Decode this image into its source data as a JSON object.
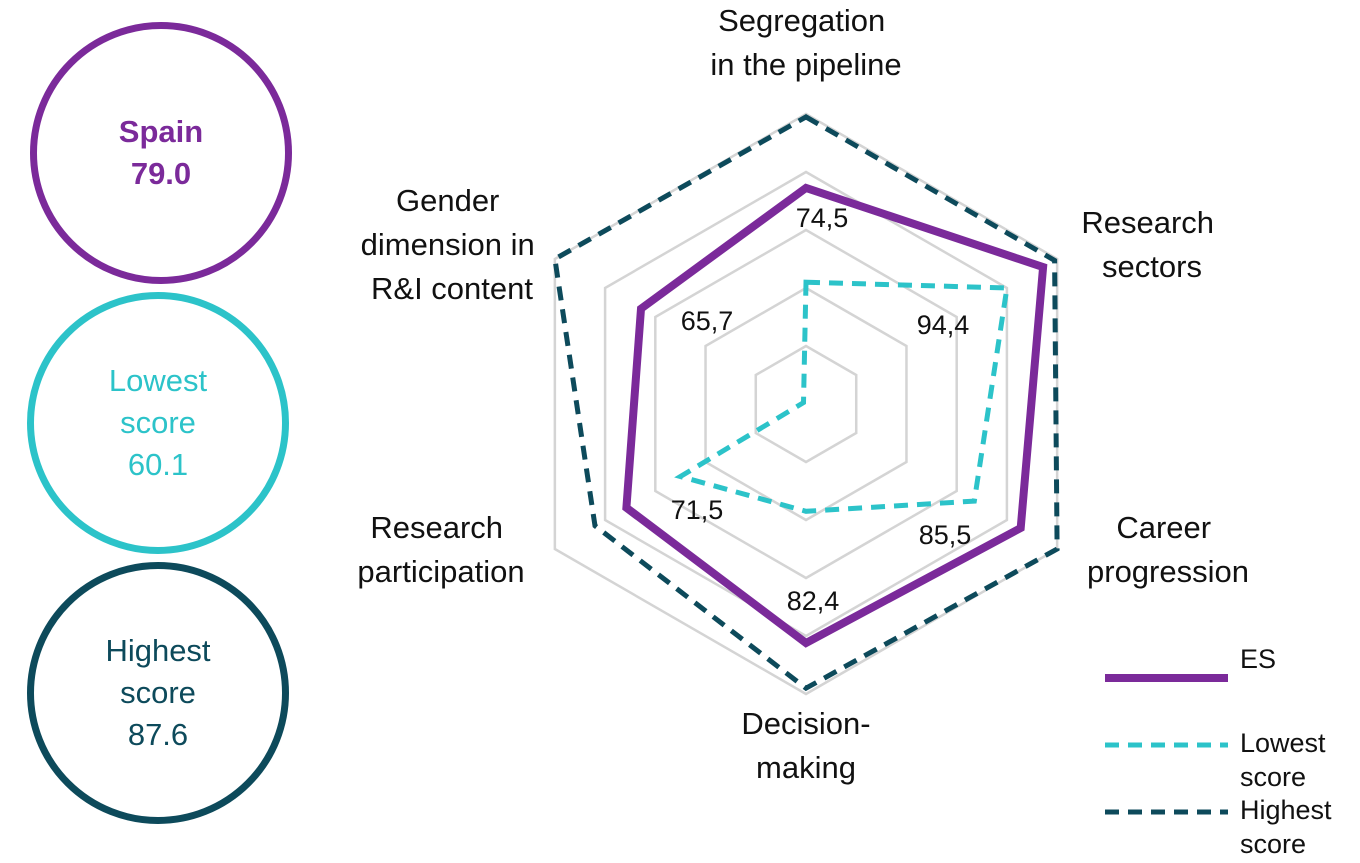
{
  "chart_data": {
    "type": "radar",
    "categories": [
      "Segregation in the pipeline",
      "Research sectors",
      "Career progression",
      "Decision-making",
      "Research participation",
      "Gender dimension in R&I content"
    ],
    "rlim": [
      0,
      100
    ],
    "rticks": [
      20,
      40,
      60,
      80,
      100
    ],
    "grid": true,
    "legend": "lower right",
    "series": [
      {
        "name": "ES",
        "color": "#7b2a9a",
        "dash": "solid",
        "values": [
          74.5,
          94.4,
          85.5,
          82.4,
          71.5,
          65.7
        ],
        "value_labels": [
          "74,5",
          "94,4",
          "85,5",
          "82,4",
          "71,5",
          "65,7"
        ]
      },
      {
        "name": "Lowest score",
        "color": "#2cc3c9",
        "dash": "dashed",
        "values": [
          42,
          80,
          67,
          37,
          50,
          1
        ]
      },
      {
        "name": "Highest score",
        "color": "#0d4a5b",
        "dash": "dashed",
        "values": [
          99,
          99,
          100,
          98,
          84,
          100
        ]
      }
    ]
  },
  "scores": {
    "labels": [
      "Spain",
      "Lowest score",
      "Highest score"
    ],
    "values": [
      79.0,
      60.1,
      87.6
    ],
    "value_labels": [
      "79.0",
      "60.1",
      "87.6"
    ],
    "colors": [
      "#7b2a9a",
      "#2cc3c9",
      "#0d4a5b"
    ]
  }
}
